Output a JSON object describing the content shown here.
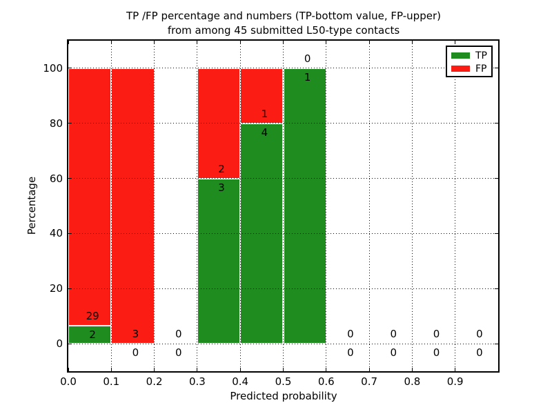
{
  "chart_data": {
    "type": "bar",
    "stacked": true,
    "title": "TP /FP percentage and numbers (TP-bottom value, FP-upper) from among 45 submitted L50-type contacts",
    "title_line1": "TP /FP percentage and numbers (TP-bottom value, FP-upper)",
    "title_line2": "from among 45 submitted L50-type contacts",
    "xlabel": "Predicted probability",
    "ylabel": "Percentage",
    "xlim": [
      0.0,
      1.0
    ],
    "ylim": [
      -10,
      110
    ],
    "xticks": [
      "0.0",
      "0.1",
      "0.2",
      "0.3",
      "0.4",
      "0.5",
      "0.6",
      "0.7",
      "0.8",
      "0.9"
    ],
    "yticks": [
      0,
      20,
      40,
      60,
      80,
      100
    ],
    "grid": "dotted",
    "total_contacts": 45,
    "legend": {
      "position": "upper right",
      "entries": [
        {
          "label": "TP",
          "color": "#1e8c1e"
        },
        {
          "label": "FP",
          "color": "#fb1d13"
        }
      ]
    },
    "bins": [
      {
        "x0": 0.0,
        "x1": 0.1,
        "tp_count": 2,
        "fp_count": 29,
        "tp_pct": 6.45,
        "fp_pct": 93.55
      },
      {
        "x0": 0.1,
        "x1": 0.2,
        "tp_count": 0,
        "fp_count": 3,
        "tp_pct": 0,
        "fp_pct": 100
      },
      {
        "x0": 0.2,
        "x1": 0.3,
        "tp_count": 0,
        "fp_count": 0,
        "tp_pct": 0,
        "fp_pct": 0
      },
      {
        "x0": 0.3,
        "x1": 0.4,
        "tp_count": 3,
        "fp_count": 2,
        "tp_pct": 60,
        "fp_pct": 40
      },
      {
        "x0": 0.4,
        "x1": 0.5,
        "tp_count": 4,
        "fp_count": 1,
        "tp_pct": 80,
        "fp_pct": 20
      },
      {
        "x0": 0.5,
        "x1": 0.6,
        "tp_count": 1,
        "fp_count": 0,
        "tp_pct": 100,
        "fp_pct": 0
      },
      {
        "x0": 0.6,
        "x1": 0.7,
        "tp_count": 0,
        "fp_count": 0,
        "tp_pct": 0,
        "fp_pct": 0
      },
      {
        "x0": 0.7,
        "x1": 0.8,
        "tp_count": 0,
        "fp_count": 0,
        "tp_pct": 0,
        "fp_pct": 0
      },
      {
        "x0": 0.8,
        "x1": 0.9,
        "tp_count": 0,
        "fp_count": 0,
        "tp_pct": 0,
        "fp_pct": 0
      },
      {
        "x0": 0.9,
        "x1": 1.0,
        "tp_count": 0,
        "fp_count": 0,
        "tp_pct": 0,
        "fp_pct": 0
      }
    ]
  }
}
